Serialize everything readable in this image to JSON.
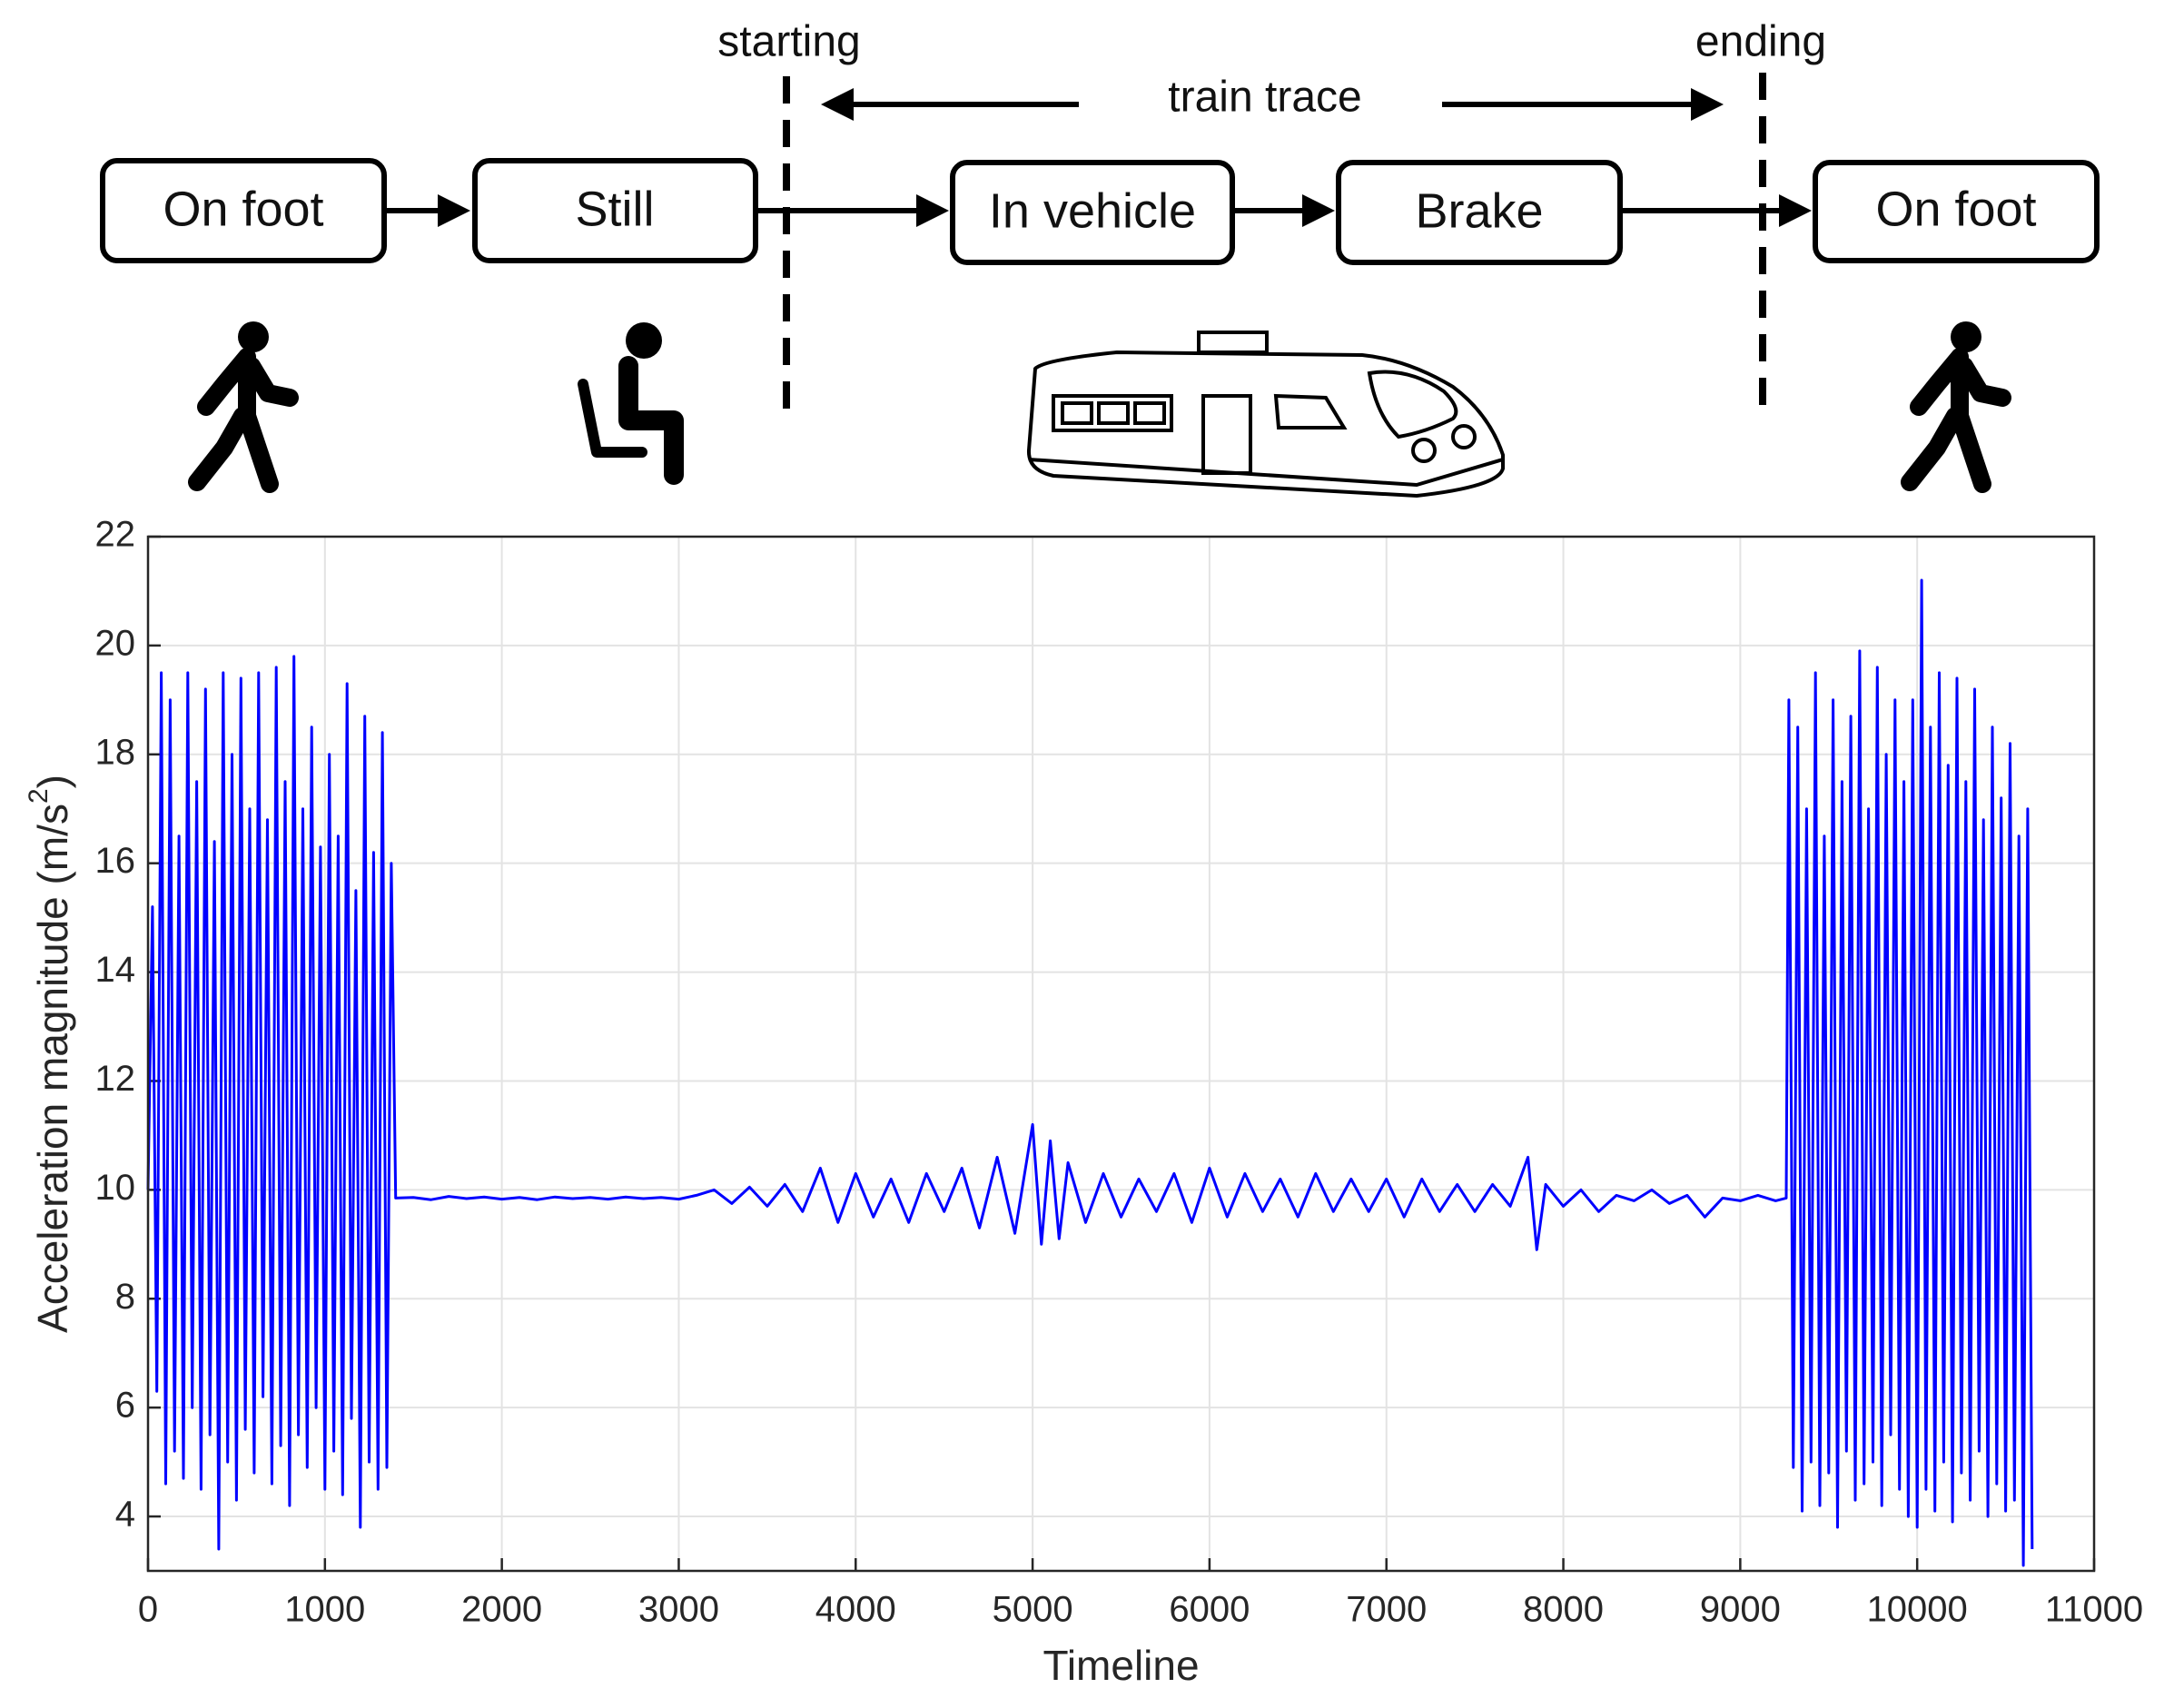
{
  "diagram": {
    "nodes": [
      {
        "label": "On foot"
      },
      {
        "label": "Still"
      },
      {
        "label": "In vehicle"
      },
      {
        "label": "Brake"
      },
      {
        "label": "On foot"
      }
    ],
    "start_label": "starting",
    "end_label": "ending",
    "trace_label": "train trace"
  },
  "chart_data": {
    "type": "line",
    "xlabel": "Timeline",
    "ylabel": {
      "text": "Acceleration magnitude (m/s",
      "superscript": "2",
      "suffix": ")"
    },
    "xlim": [
      0,
      11000
    ],
    "xticks": [
      0,
      1000,
      2000,
      3000,
      4000,
      5000,
      6000,
      7000,
      8000,
      9000,
      10000,
      11000
    ],
    "ylim": [
      3,
      22
    ],
    "yticks": [
      4,
      6,
      8,
      10,
      12,
      14,
      16,
      18,
      20,
      22
    ],
    "grid": true,
    "series": [
      {
        "name": "Acceleration magnitude",
        "color": "#0000ff",
        "x": [
          0,
          25,
          50,
          75,
          100,
          125,
          150,
          175,
          200,
          225,
          250,
          275,
          300,
          325,
          350,
          375,
          400,
          425,
          450,
          475,
          500,
          525,
          550,
          575,
          600,
          625,
          650,
          675,
          700,
          725,
          750,
          775,
          800,
          825,
          850,
          875,
          900,
          925,
          950,
          975,
          1000,
          1025,
          1050,
          1075,
          1100,
          1125,
          1150,
          1175,
          1200,
          1225,
          1250,
          1275,
          1300,
          1325,
          1350,
          1375,
          1400,
          1500,
          1600,
          1700,
          1800,
          1900,
          2000,
          2100,
          2200,
          2300,
          2400,
          2500,
          2600,
          2700,
          2800,
          2900,
          3000,
          3100,
          3200,
          3300,
          3400,
          3500,
          3600,
          3700,
          3800,
          3900,
          4000,
          4100,
          4200,
          4300,
          4400,
          4500,
          4600,
          4700,
          4800,
          4900,
          5000,
          5050,
          5100,
          5150,
          5200,
          5300,
          5400,
          5500,
          5600,
          5700,
          5800,
          5900,
          6000,
          6100,
          6200,
          6300,
          6400,
          6500,
          6600,
          6700,
          6800,
          6900,
          7000,
          7100,
          7200,
          7300,
          7400,
          7500,
          7600,
          7700,
          7800,
          7850,
          7900,
          8000,
          8100,
          8200,
          8300,
          8400,
          8500,
          8600,
          8700,
          8800,
          8900,
          9000,
          9100,
          9200,
          9260,
          9275,
          9300,
          9325,
          9350,
          9375,
          9400,
          9425,
          9450,
          9475,
          9500,
          9525,
          9550,
          9575,
          9600,
          9625,
          9650,
          9675,
          9700,
          9725,
          9750,
          9775,
          9800,
          9825,
          9850,
          9875,
          9900,
          9925,
          9950,
          9975,
          10000,
          10025,
          10050,
          10075,
          10100,
          10125,
          10150,
          10175,
          10200,
          10225,
          10250,
          10275,
          10300,
          10325,
          10350,
          10375,
          10400,
          10425,
          10450,
          10475,
          10500,
          10525,
          10550,
          10575,
          10600,
          10625,
          10650
        ],
        "values": [
          10,
          15.2,
          6.3,
          19.5,
          4.6,
          19.0,
          5.2,
          16.5,
          4.7,
          19.5,
          6.0,
          17.5,
          4.5,
          19.2,
          5.5,
          16.4,
          3.4,
          19.5,
          5.0,
          18.0,
          4.3,
          19.4,
          5.6,
          17.0,
          4.8,
          19.5,
          6.2,
          16.8,
          4.6,
          19.6,
          5.3,
          17.5,
          4.2,
          19.8,
          5.5,
          17.0,
          4.9,
          18.5,
          6.0,
          16.3,
          4.5,
          18.0,
          5.2,
          16.5,
          4.4,
          19.3,
          5.8,
          15.5,
          3.8,
          18.7,
          5.0,
          16.2,
          4.5,
          18.4,
          4.9,
          16.0,
          9.85,
          9.86,
          9.82,
          9.88,
          9.84,
          9.87,
          9.83,
          9.86,
          9.82,
          9.87,
          9.84,
          9.86,
          9.83,
          9.87,
          9.84,
          9.86,
          9.83,
          9.9,
          10.0,
          9.75,
          10.05,
          9.7,
          10.1,
          9.6,
          10.4,
          9.4,
          10.3,
          9.5,
          10.2,
          9.4,
          10.3,
          9.6,
          10.4,
          9.3,
          10.6,
          9.2,
          11.2,
          9.0,
          10.9,
          9.1,
          10.5,
          9.4,
          10.3,
          9.5,
          10.2,
          9.6,
          10.3,
          9.4,
          10.4,
          9.5,
          10.3,
          9.6,
          10.2,
          9.5,
          10.3,
          9.6,
          10.2,
          9.6,
          10.2,
          9.5,
          10.2,
          9.6,
          10.1,
          9.6,
          10.1,
          9.7,
          10.6,
          8.9,
          10.1,
          9.7,
          10.0,
          9.6,
          9.9,
          9.8,
          10.0,
          9.75,
          9.9,
          9.5,
          9.85,
          9.8,
          9.9,
          9.8,
          9.85,
          19.0,
          4.9,
          18.5,
          4.1,
          17.0,
          5.0,
          19.5,
          4.2,
          16.5,
          4.8,
          19.0,
          3.8,
          17.5,
          5.2,
          18.7,
          4.3,
          19.9,
          4.6,
          17.0,
          5.0,
          19.6,
          4.2,
          18.0,
          5.5,
          19.0,
          4.5,
          17.5,
          4.0,
          19.0,
          3.8,
          21.2,
          4.5,
          18.5,
          4.1,
          19.5,
          5.0,
          17.8,
          3.9,
          19.4,
          4.8,
          17.5,
          4.3,
          19.2,
          5.2,
          16.8,
          4.0,
          18.5,
          4.6,
          17.2,
          4.1,
          18.2,
          4.3,
          16.5,
          3.1,
          17.0,
          3.4
        ]
      }
    ]
  }
}
